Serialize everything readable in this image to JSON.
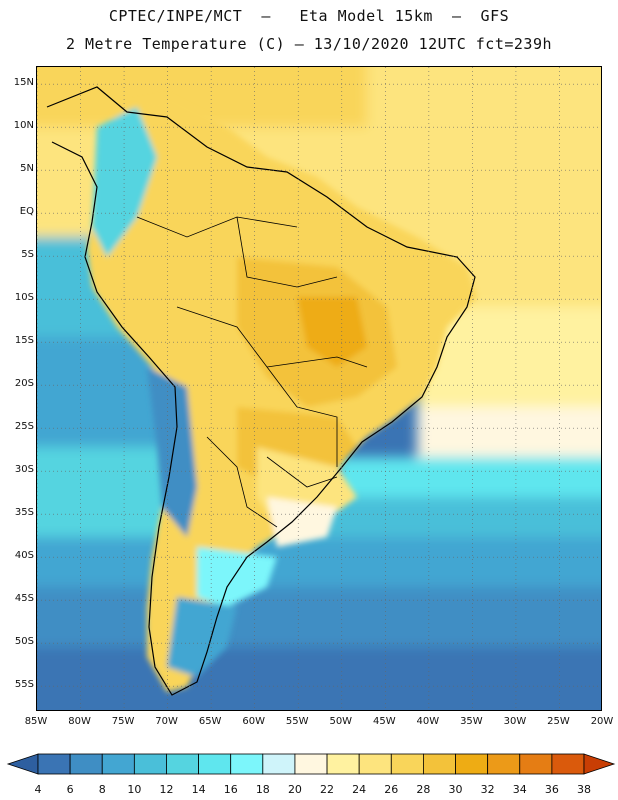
{
  "header": {
    "title_line1": "CPTEC/INPE/MCT  –   Eta Model 15km  –  GFS",
    "title_line2": "2 Metre Temperature (C) – 13/10/2020 12UTC fct=239h"
  },
  "map": {
    "lat_labels": [
      "15N",
      "10N",
      "5N",
      "EQ",
      "5S",
      "10S",
      "15S",
      "20S",
      "25S",
      "30S",
      "35S",
      "40S",
      "45S",
      "50S",
      "55S"
    ],
    "lon_labels": [
      "85W",
      "80W",
      "75W",
      "70W",
      "65W",
      "60W",
      "55W",
      "50W",
      "45W",
      "40W",
      "35W",
      "30W",
      "25W",
      "20W"
    ],
    "lon_range": [
      -85,
      -20
    ],
    "lat_range": [
      -58,
      17
    ],
    "gridline_style": "dotted"
  },
  "colorbar": {
    "levels": [
      "4",
      "6",
      "8",
      "10",
      "12",
      "14",
      "16",
      "18",
      "20",
      "22",
      "24",
      "26",
      "28",
      "30",
      "32",
      "34",
      "36",
      "38"
    ],
    "colors": [
      "#2e5fa0",
      "#3a74b4",
      "#3f8ec4",
      "#43a6d2",
      "#4abfd9",
      "#55d4e0",
      "#5fe6ee",
      "#7cf6fb",
      "#cff4fa",
      "#fff7e0",
      "#fff2a0",
      "#fde47e",
      "#f9d55a",
      "#f3c23a",
      "#eeac14",
      "#ec9a18",
      "#e57d14",
      "#da5a0c",
      "#c83e04"
    ]
  }
}
